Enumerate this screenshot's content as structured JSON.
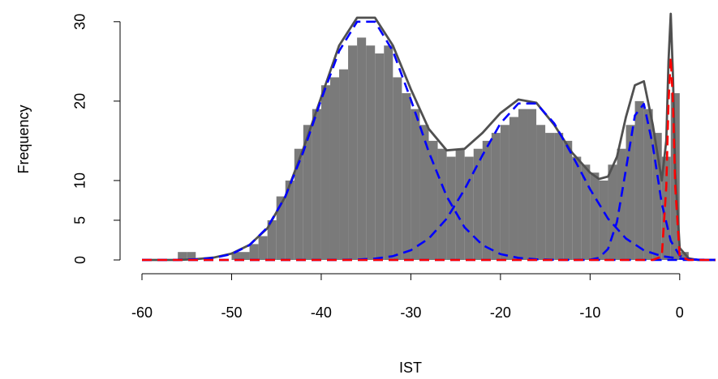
{
  "chart_data": {
    "type": "histogram",
    "xlabel": "IST",
    "ylabel": "Frequency",
    "bins": [
      -56,
      -55,
      -54,
      -53,
      -52,
      -51,
      -50,
      -49,
      -48,
      -47,
      -46,
      -45,
      -44,
      -43,
      -42,
      -41,
      -40,
      -39,
      -38,
      -37,
      -36,
      -35,
      -34,
      -33,
      -32,
      -31,
      -30,
      -29,
      -28,
      -27,
      -26,
      -25,
      -24,
      -23,
      -22,
      -21,
      -20,
      -19,
      -18,
      -17,
      -16,
      -15,
      -14,
      -13,
      -12,
      -11,
      -10,
      -9,
      -8,
      -7,
      -6,
      -5,
      -4,
      -3,
      -2,
      -1,
      0,
      1
    ],
    "counts": [
      1,
      1,
      0,
      0,
      0,
      0,
      1,
      1,
      2,
      3,
      5,
      8,
      10,
      14,
      17,
      19,
      22,
      23,
      24,
      27,
      28,
      27,
      26,
      27,
      23,
      21,
      19,
      17,
      15,
      14,
      13,
      14,
      13,
      14,
      15,
      16,
      17,
      18,
      19,
      19,
      17,
      16,
      16,
      15,
      13,
      12,
      11,
      10,
      12,
      14,
      17,
      20,
      19,
      16,
      13,
      21,
      1
    ],
    "color": "#7a7a7a",
    "curves": [
      {
        "color": "#505050",
        "dash": false,
        "x": [
          -60,
          -58,
          -56,
          -54,
          -52,
          -50,
          -48,
          -46,
          -44,
          -42,
          -40,
          -38,
          -36,
          -34,
          -32,
          -30,
          -28,
          -26,
          -24,
          -22,
          -20,
          -18,
          -16,
          -14,
          -12,
          -10,
          -9,
          -8,
          -7,
          -6,
          -5,
          -4,
          -3,
          -2,
          -1.5,
          -1.25,
          -1,
          -0.75,
          -0.5,
          0,
          1,
          2,
          4
        ],
        "values": [
          0,
          0,
          0,
          0.1,
          0.3,
          0.8,
          1.9,
          4,
          8,
          14,
          20.5,
          27,
          30.5,
          30.5,
          27,
          21.5,
          16.5,
          13.8,
          14,
          16,
          18.5,
          20.2,
          19.8,
          17,
          13.5,
          11,
          10.2,
          10.5,
          13,
          18,
          22,
          22.5,
          17,
          10,
          15,
          25,
          31,
          23,
          11,
          1.5,
          0.2,
          0,
          0
        ]
      },
      {
        "color": "#0000ff",
        "dash": true,
        "x": [
          -60,
          -58,
          -56,
          -54,
          -52,
          -50,
          -48,
          -46,
          -44,
          -42,
          -40,
          -38,
          -36,
          -34,
          -32,
          -30,
          -28,
          -26,
          -24,
          -22,
          -20,
          -18,
          -16,
          -14,
          -12,
          -10,
          -8,
          -6,
          -4,
          -2,
          0,
          2,
          4
        ],
        "values": [
          0,
          0,
          0.02,
          0.08,
          0.26,
          0.74,
          1.87,
          4.1,
          8,
          13.6,
          20.2,
          26.3,
          30,
          30,
          26.3,
          20.2,
          13.6,
          8,
          4.1,
          1.87,
          0.74,
          0.26,
          0.08,
          0.02,
          0,
          0,
          0,
          0,
          0,
          0,
          0,
          0,
          0
        ]
      },
      {
        "color": "#0000ff",
        "dash": true,
        "x": [
          -60,
          -50,
          -40,
          -38,
          -36,
          -34,
          -32,
          -30,
          -28,
          -26,
          -24,
          -22,
          -20,
          -18,
          -16,
          -14,
          -12,
          -10,
          -8,
          -6,
          -4,
          -2,
          0,
          2,
          4
        ],
        "values": [
          0,
          0,
          0,
          0.01,
          0.05,
          0.17,
          0.48,
          1.22,
          2.7,
          5.2,
          8.9,
          13.2,
          17.2,
          19.7,
          19.7,
          17.2,
          13.2,
          8.9,
          5.2,
          2.7,
          1.22,
          0.48,
          0.17,
          0.05,
          0.01
        ]
      },
      {
        "color": "#0000ff",
        "dash": true,
        "x": [
          -60,
          -12,
          -10,
          -9,
          -8,
          -7,
          -6,
          -5,
          -4,
          -3,
          -2,
          -1,
          0,
          1,
          2,
          4
        ],
        "values": [
          0,
          0,
          0.04,
          0.27,
          1.38,
          4.8,
          11.4,
          18.2,
          19.65,
          14.4,
          7.1,
          2.4,
          0.54,
          0.08,
          0.01,
          0
        ]
      },
      {
        "color": "#ff0000",
        "dash": true,
        "x": [
          -60,
          -3,
          -2,
          -1.5,
          -1.25,
          -1,
          -0.75,
          -0.5,
          0,
          1,
          4
        ],
        "values": [
          0,
          0,
          0.43,
          9.2,
          19.8,
          25.5,
          19.8,
          9.2,
          0.43,
          0,
          0
        ]
      }
    ],
    "xlim": [
      -60,
      4
    ],
    "ylim": [
      0,
      31
    ],
    "xticks": [
      -60,
      -50,
      -40,
      -30,
      -20,
      -10,
      0
    ],
    "yticks": [
      0,
      5,
      10,
      20,
      30
    ]
  }
}
